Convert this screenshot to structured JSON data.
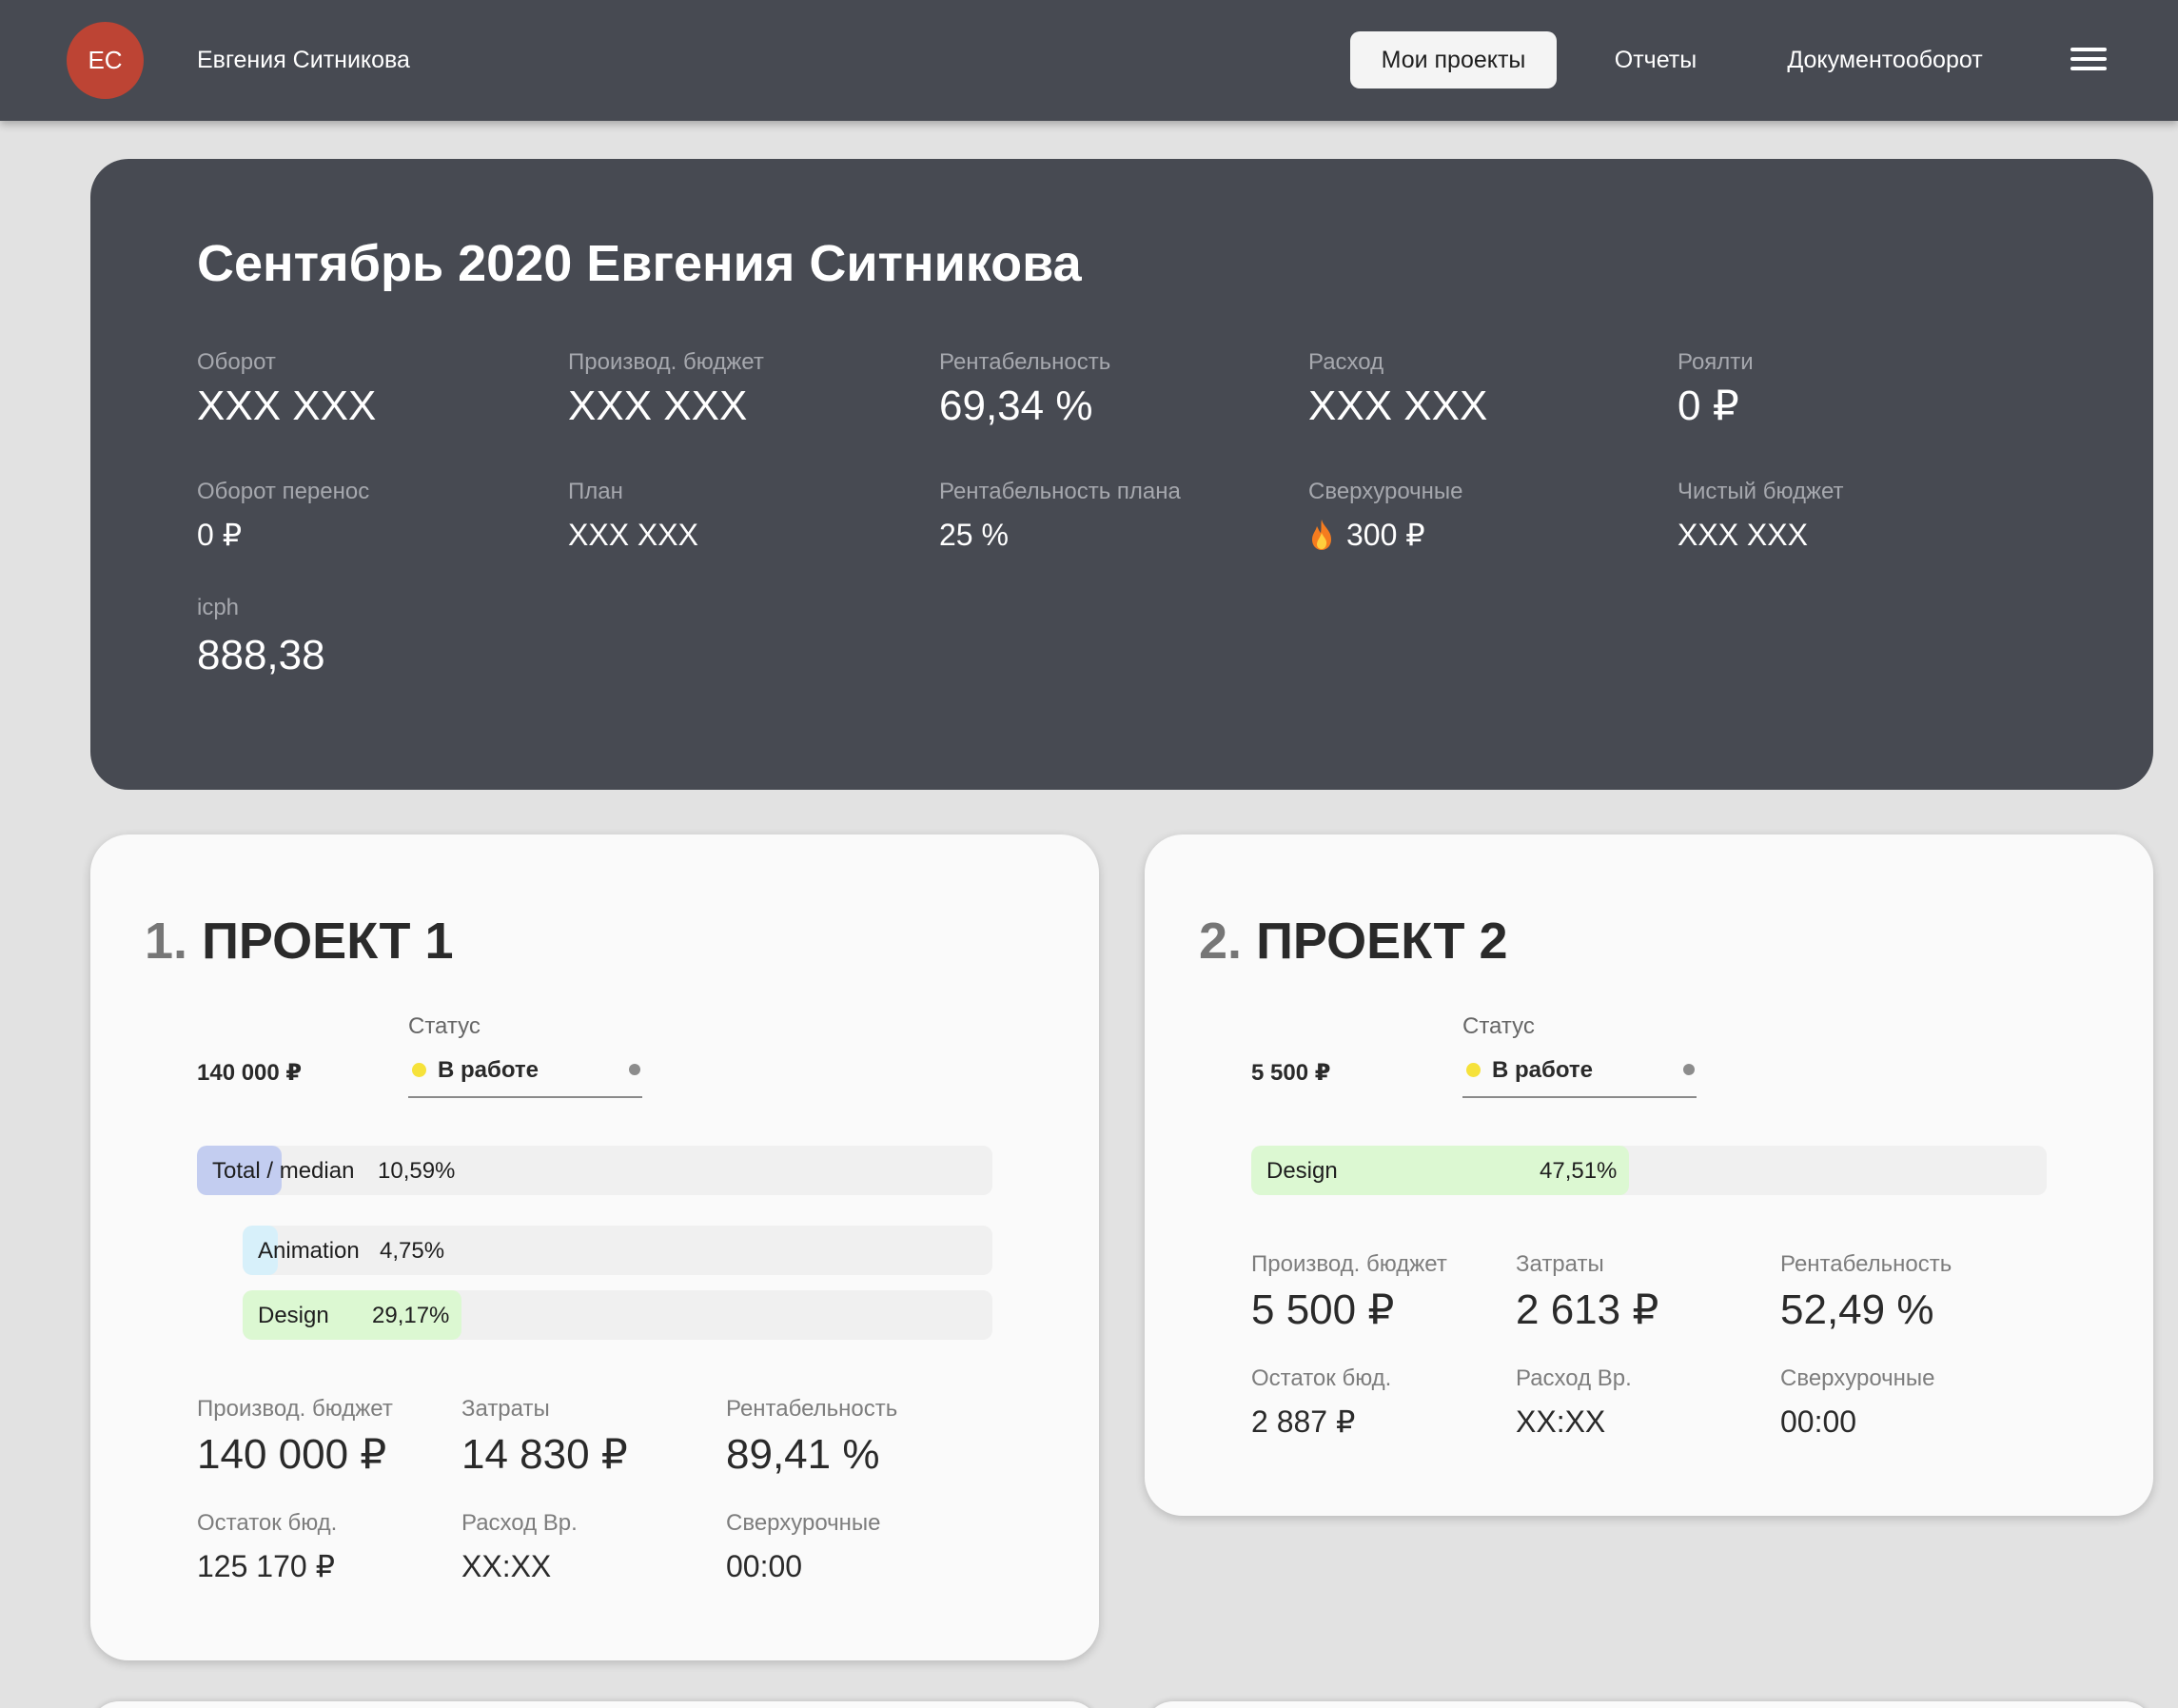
{
  "header": {
    "avatar_initials": "ЕС",
    "user_name": "Евгения Ситникова",
    "nav": [
      {
        "label": "Мои проекты",
        "active": true
      },
      {
        "label": "Отчеты",
        "active": false
      },
      {
        "label": "Документооборот",
        "active": false
      }
    ],
    "menu_icon": "hamburger-menu-icon"
  },
  "summary": {
    "title": "Сентябрь 2020 Евгения Ситникова",
    "metrics": [
      {
        "label": "Оборот",
        "value": "XXX XXX"
      },
      {
        "label": "Производ. бюджет",
        "value": "XXX XXX"
      },
      {
        "label": "Рентабельность",
        "value": "69,34 %"
      },
      {
        "label": "Расход",
        "value": "XXX XXX"
      },
      {
        "label": "Роялти",
        "value": "0 ₽"
      },
      {
        "label": "Оборот перенос",
        "value": "0 ₽"
      },
      {
        "label": "План",
        "value": "XXX XXX"
      },
      {
        "label": "Рентабельность плана",
        "value": "25 %"
      },
      {
        "label": "Сверхурочные",
        "value": "300 ₽",
        "icon": "fire-icon"
      },
      {
        "label": "Чистый бюджет",
        "value": "XXX XXX"
      },
      {
        "label": "icph",
        "value": "888,38"
      }
    ]
  },
  "projects": [
    {
      "number": "1.",
      "title": "ПРОЕКТ 1",
      "budget": "140 000 ₽",
      "status_label": "Статус",
      "status": "В работе",
      "bars": [
        {
          "name": "Total / median",
          "percent_text": "10,59%",
          "fraction": 0.1059,
          "color": "#c3cdf0"
        },
        {
          "name": "Animation",
          "percent_text": "4,75%",
          "fraction": 0.0475,
          "color": "#d7f0fa"
        },
        {
          "name": "Design",
          "percent_text": "29,17%",
          "fraction": 0.2917,
          "color": "#dcf8d2"
        }
      ],
      "stats": [
        {
          "label": "Производ. бюджет",
          "value": "140 000 ₽"
        },
        {
          "label": "Затраты",
          "value": "14 830 ₽"
        },
        {
          "label": "Рентабельность",
          "value": "89,41 %"
        },
        {
          "label": "Остаток бюд.",
          "value": "125 170 ₽"
        },
        {
          "label": "Расход Вр.",
          "value": "XX:XX"
        },
        {
          "label": "Сверхурочные",
          "value": "00:00"
        }
      ]
    },
    {
      "number": "2.",
      "title": "ПРОЕКТ 2",
      "budget": "5 500 ₽",
      "status_label": "Статус",
      "status": "В работе",
      "bars": [
        {
          "name": "Design",
          "percent_text": "47,51%",
          "fraction": 0.4751,
          "color": "#dcf8d2"
        }
      ],
      "stats": [
        {
          "label": "Производ. бюджет",
          "value": "5 500 ₽"
        },
        {
          "label": "Затраты",
          "value": "2 613 ₽"
        },
        {
          "label": "Рентабельность",
          "value": "52,49 %"
        },
        {
          "label": "Остаток бюд.",
          "value": "2 887 ₽"
        },
        {
          "label": "Расход Вр.",
          "value": "XX:XX"
        },
        {
          "label": "Сверхурочные",
          "value": "00:00"
        }
      ]
    }
  ]
}
